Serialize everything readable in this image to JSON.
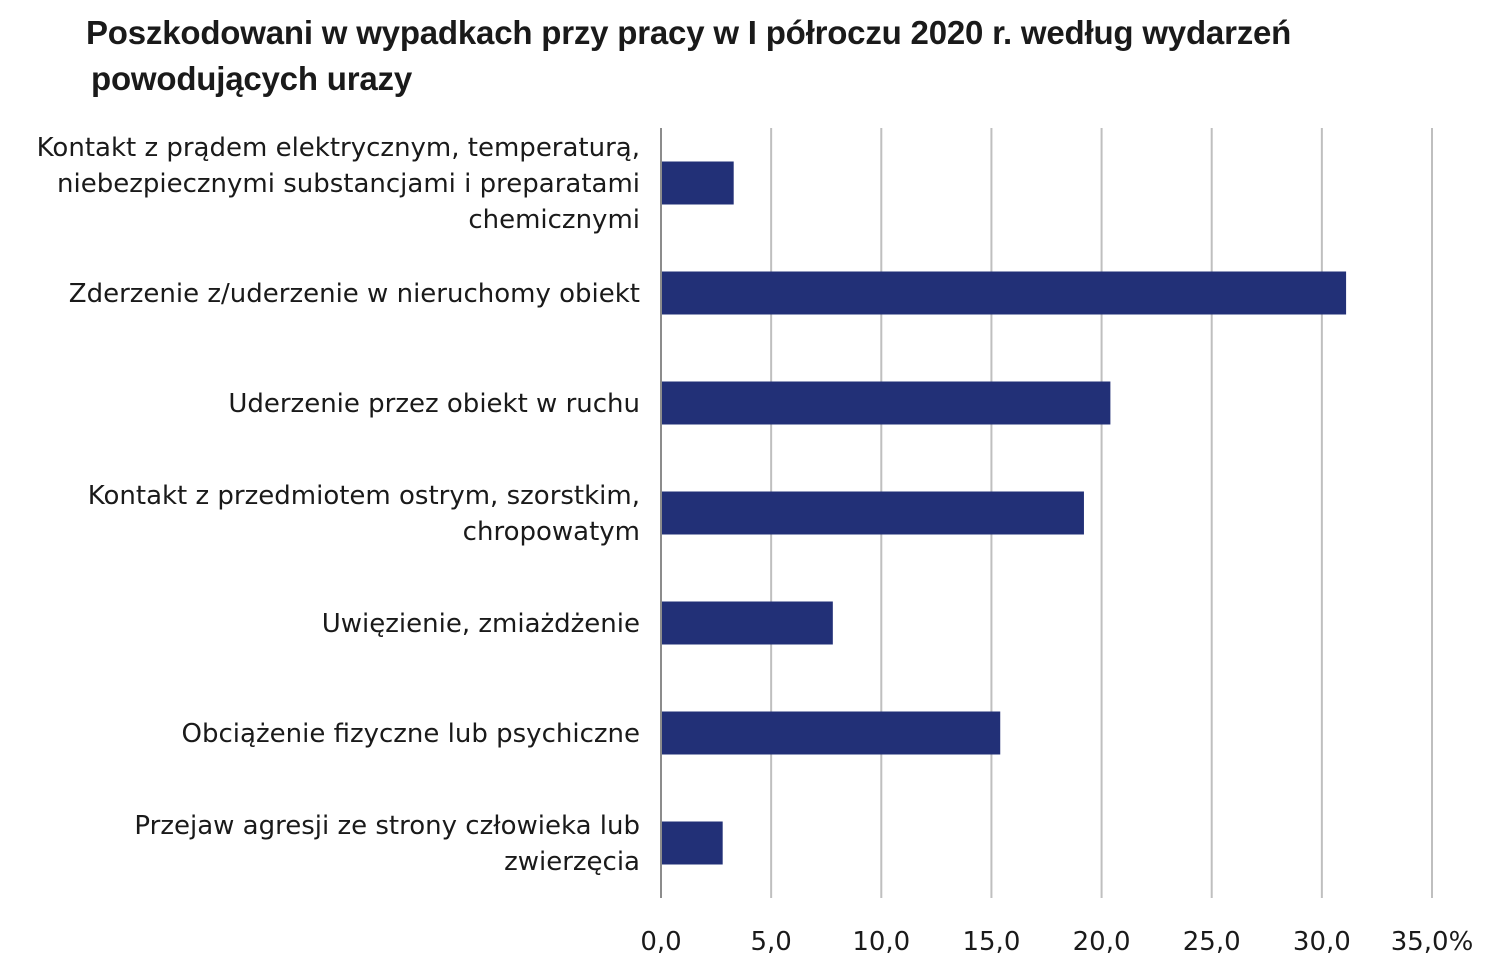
{
  "chart_data": {
    "type": "bar",
    "orientation": "horizontal",
    "title_lines": [
      "Poszkodowani w wypadkach przy pracy w I półroczu 2020 r. według wydarzeń",
      "powodujących urazy"
    ],
    "categories": [
      [
        "Kontakt z prądem elektrycznym, temperaturą,",
        "niebezpiecznymi substancjami i preparatami",
        "chemicznymi"
      ],
      [
        "Zderzenie z/uderzenie w nieruchomy obiekt"
      ],
      [
        "Uderzenie przez obiekt w ruchu"
      ],
      [
        "Kontakt z przedmiotem ostrym, szorstkim,",
        "chropowatym"
      ],
      [
        "Uwięzienie, zmiażdżenie"
      ],
      [
        "Obciążenie fizyczne lub psychiczne"
      ],
      [
        "Przejaw agresji ze strony człowieka lub",
        "zwierzęcia"
      ]
    ],
    "values": [
      3.3,
      31.1,
      20.4,
      19.2,
      7.8,
      15.4,
      2.8
    ],
    "xlim": [
      0,
      35
    ],
    "ticks": [
      0,
      5,
      10,
      15,
      20,
      25,
      30,
      35
    ],
    "tick_labels": [
      "0,0",
      "5,0",
      "10,0",
      "15,0",
      "20,0",
      "25,0",
      "30,0",
      "35,0%"
    ],
    "bar_color": "#223077",
    "grid": true,
    "gridline_color": "#bfbfbf",
    "legend": "none"
  }
}
